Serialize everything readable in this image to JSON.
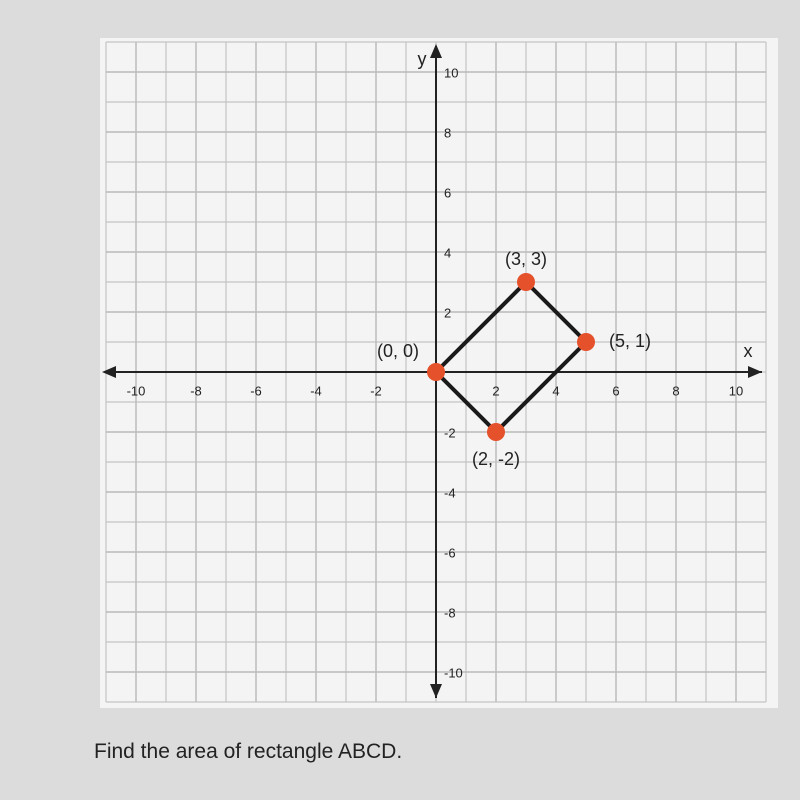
{
  "chart_data": {
    "type": "polygon",
    "x_label": "x",
    "y_label": "y",
    "xlim": [
      -11,
      11
    ],
    "ylim": [
      -11,
      11
    ],
    "xticks": [
      -10,
      -8,
      -6,
      -4,
      -2,
      2,
      4,
      6,
      8,
      10
    ],
    "yticks": [
      -10,
      -8,
      -6,
      -4,
      -2,
      2,
      4,
      6,
      8,
      10
    ],
    "grid": true,
    "series": [
      {
        "color": "#e4512b",
        "x": [
          0,
          3,
          5,
          2
        ],
        "values": [
          0,
          3,
          1,
          -2
        ],
        "point_labels": [
          "(0, 0)",
          "(3, 3)",
          "(5, 1)",
          "(2, -2)"
        ]
      }
    ]
  },
  "question": "Find the area of rectangle ABCD."
}
